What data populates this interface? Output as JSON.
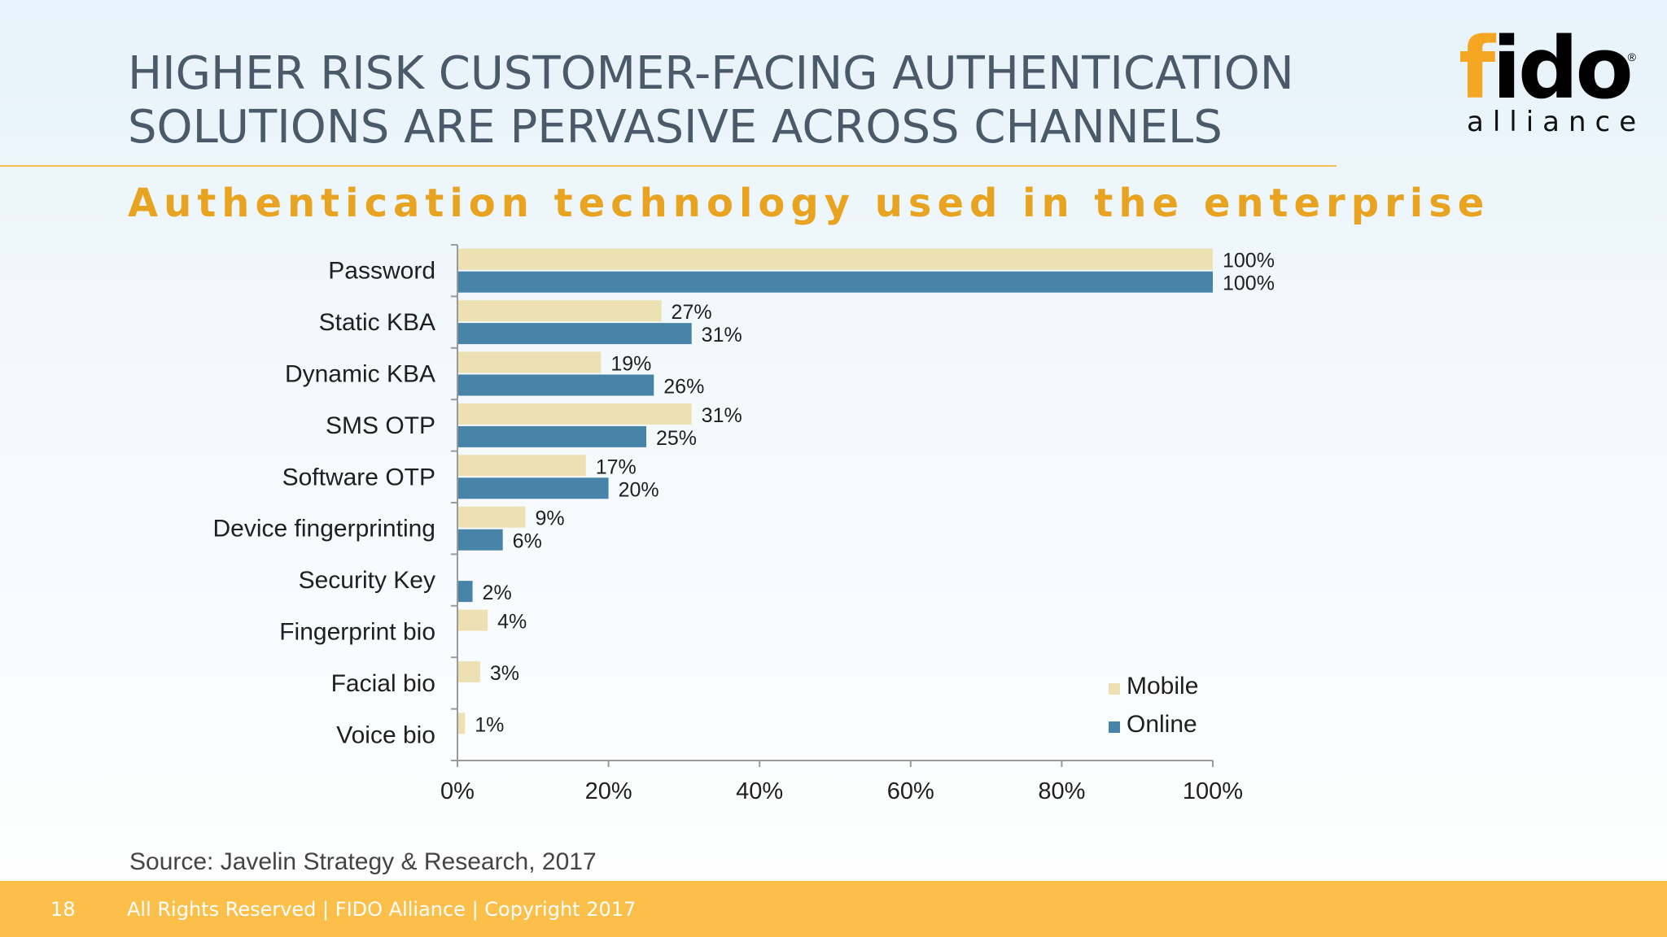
{
  "slide": {
    "title_line1": "HIGHER RISK CUSTOMER-FACING AUTHENTICATION",
    "title_line2": "SOLUTIONS ARE PERVASIVE ACROSS CHANNELS",
    "subtitle": "Authentication technology used in the enterprise",
    "source": "Source: Javelin Strategy & Research, 2017",
    "page_number": "18",
    "footer_text": "All Rights Reserved | FIDO Alliance | Copyright 2017"
  },
  "logo": {
    "word": "fido",
    "f_letter": "f",
    "rest": "ido",
    "registered": "®",
    "tagline": "alliance"
  },
  "colors": {
    "mobile": "#ede1b3",
    "online": "#4784a8",
    "accent": "#e8a320",
    "footer": "#fbbf4a"
  },
  "chart_data": {
    "type": "bar",
    "orientation": "horizontal",
    "categories": [
      "Password",
      "Static KBA",
      "Dynamic KBA",
      "SMS OTP",
      "Software OTP",
      "Device fingerprinting",
      "Security Key",
      "Fingerprint bio",
      "Facial bio",
      "Voice bio"
    ],
    "series": [
      {
        "name": "Mobile",
        "values": [
          100,
          27,
          19,
          31,
          17,
          9,
          null,
          4,
          3,
          1
        ]
      },
      {
        "name": "Online",
        "values": [
          100,
          31,
          26,
          25,
          20,
          6,
          2,
          null,
          null,
          null
        ]
      }
    ],
    "xlim": [
      0,
      100
    ],
    "xticks": [
      "0%",
      "20%",
      "40%",
      "60%",
      "80%",
      "100%"
    ],
    "value_suffix": "%",
    "legend_position": "bottom-right",
    "grid": false
  }
}
